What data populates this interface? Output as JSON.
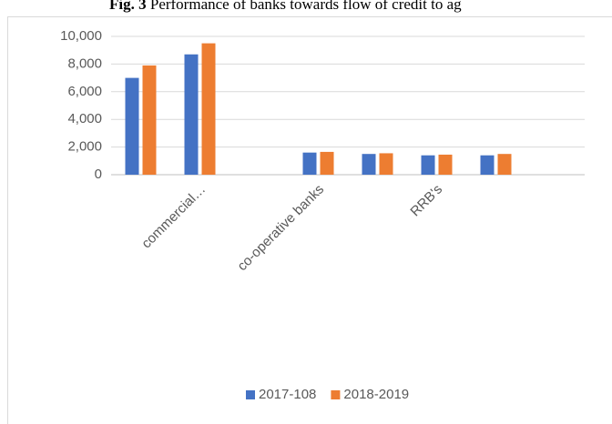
{
  "chart_data": {
    "type": "bar",
    "fig_label": "Fig. 3",
    "title": "Performance of banks towards flow of credit to ag",
    "categories": [
      null,
      "commercial…",
      null,
      "co-operative banks",
      null,
      "RRB's",
      null,
      null
    ],
    "series": [
      {
        "name": "2017-108",
        "color": "#4472c4",
        "values": [
          7000,
          8700,
          null,
          1600,
          1500,
          1400,
          1400,
          null
        ]
      },
      {
        "name": "2018-2019",
        "color": "#ed7d31",
        "values": [
          7900,
          9500,
          null,
          1650,
          1550,
          1450,
          1500,
          null
        ]
      }
    ],
    "ylim": [
      0,
      10000
    ],
    "yticks": [
      0,
      {
        "value": 2000,
        "label": "2,000"
      },
      {
        "value": 4000,
        "label": "4,000"
      },
      {
        "value": 6000,
        "label": "6,000"
      },
      {
        "value": 8000,
        "label": "8,000"
      },
      {
        "value": 10000,
        "label": "10,000"
      }
    ],
    "grid": true,
    "legend": "bottom"
  }
}
